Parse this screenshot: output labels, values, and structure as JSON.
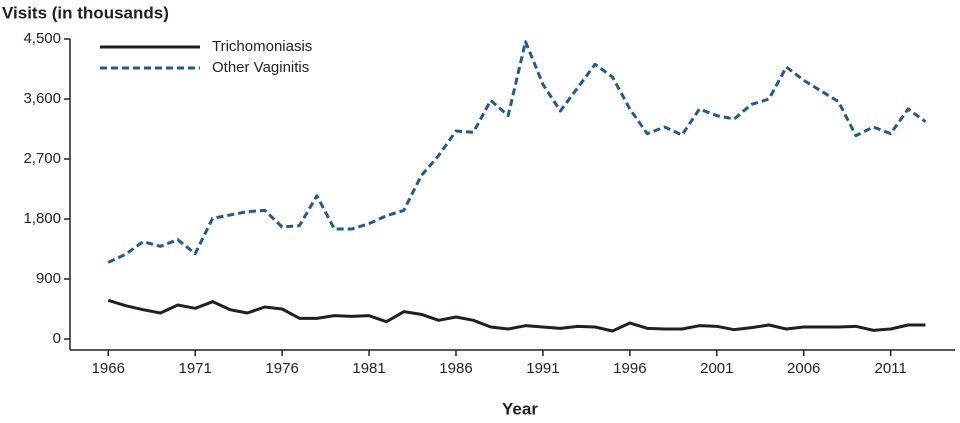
{
  "chart_data": {
    "type": "line",
    "ylabel": "Visits (in thousands)",
    "xlabel": "Year",
    "x": [
      1966,
      1967,
      1968,
      1969,
      1970,
      1971,
      1972,
      1973,
      1974,
      1975,
      1976,
      1977,
      1978,
      1979,
      1980,
      1981,
      1982,
      1983,
      1984,
      1985,
      1986,
      1987,
      1988,
      1989,
      1990,
      1991,
      1992,
      1993,
      1994,
      1995,
      1996,
      1997,
      1998,
      1999,
      2000,
      2001,
      2002,
      2003,
      2004,
      2005,
      2006,
      2007,
      2008,
      2009,
      2010,
      2011,
      2012,
      2013
    ],
    "series": [
      {
        "name": "Trichomoniasis",
        "color": "#231f20",
        "dash": "solid",
        "values": [
          580,
          500,
          440,
          390,
          510,
          460,
          560,
          440,
          390,
          480,
          450,
          310,
          310,
          350,
          340,
          350,
          260,
          410,
          370,
          280,
          330,
          280,
          180,
          150,
          200,
          180,
          160,
          190,
          180,
          120,
          240,
          160,
          150,
          150,
          200,
          190,
          140,
          170,
          210,
          150,
          180,
          180,
          180,
          190,
          130,
          150,
          210,
          210
        ]
      },
      {
        "name": "Other Vaginitis",
        "color": "#1f5b8e",
        "dash": "dashed",
        "values": [
          1150,
          1270,
          1460,
          1390,
          1490,
          1280,
          1810,
          1860,
          1910,
          1930,
          1680,
          1700,
          2150,
          1650,
          1650,
          1730,
          1850,
          1930,
          2450,
          2750,
          3120,
          3100,
          3580,
          3350,
          4460,
          3820,
          3420,
          3770,
          4120,
          3930,
          3450,
          3080,
          3180,
          3060,
          3450,
          3350,
          3300,
          3520,
          3600,
          4080,
          3880,
          3720,
          3560,
          3050,
          3180,
          3080,
          3450,
          3260
        ]
      }
    ],
    "xlim": [
      1963.8,
      2014.7
    ],
    "ylim": [
      -165,
      4500
    ],
    "xticks": [
      1966,
      1971,
      1976,
      1981,
      1986,
      1991,
      1996,
      2001,
      2006,
      2011
    ],
    "yticks": [
      0,
      900,
      {
        "value": 1800,
        "label": "1,800"
      },
      {
        "value": 2700,
        "label": "2,700"
      },
      {
        "value": 3600,
        "label": "3,600"
      },
      {
        "value": 4500,
        "label": "4,500"
      }
    ],
    "legend": "top-left"
  }
}
